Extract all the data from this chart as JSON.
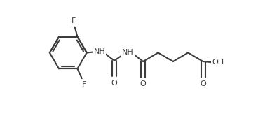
{
  "bg_color": "#ffffff",
  "line_color": "#3d3d3d",
  "text_color": "#3d3d3d",
  "bond_lw": 1.5,
  "font_size": 8.0,
  "figsize": [
    3.68,
    1.76
  ],
  "dpi": 100,
  "xlim": [
    0.0,
    10.0
  ],
  "ylim": [
    -1.5,
    5.5
  ]
}
